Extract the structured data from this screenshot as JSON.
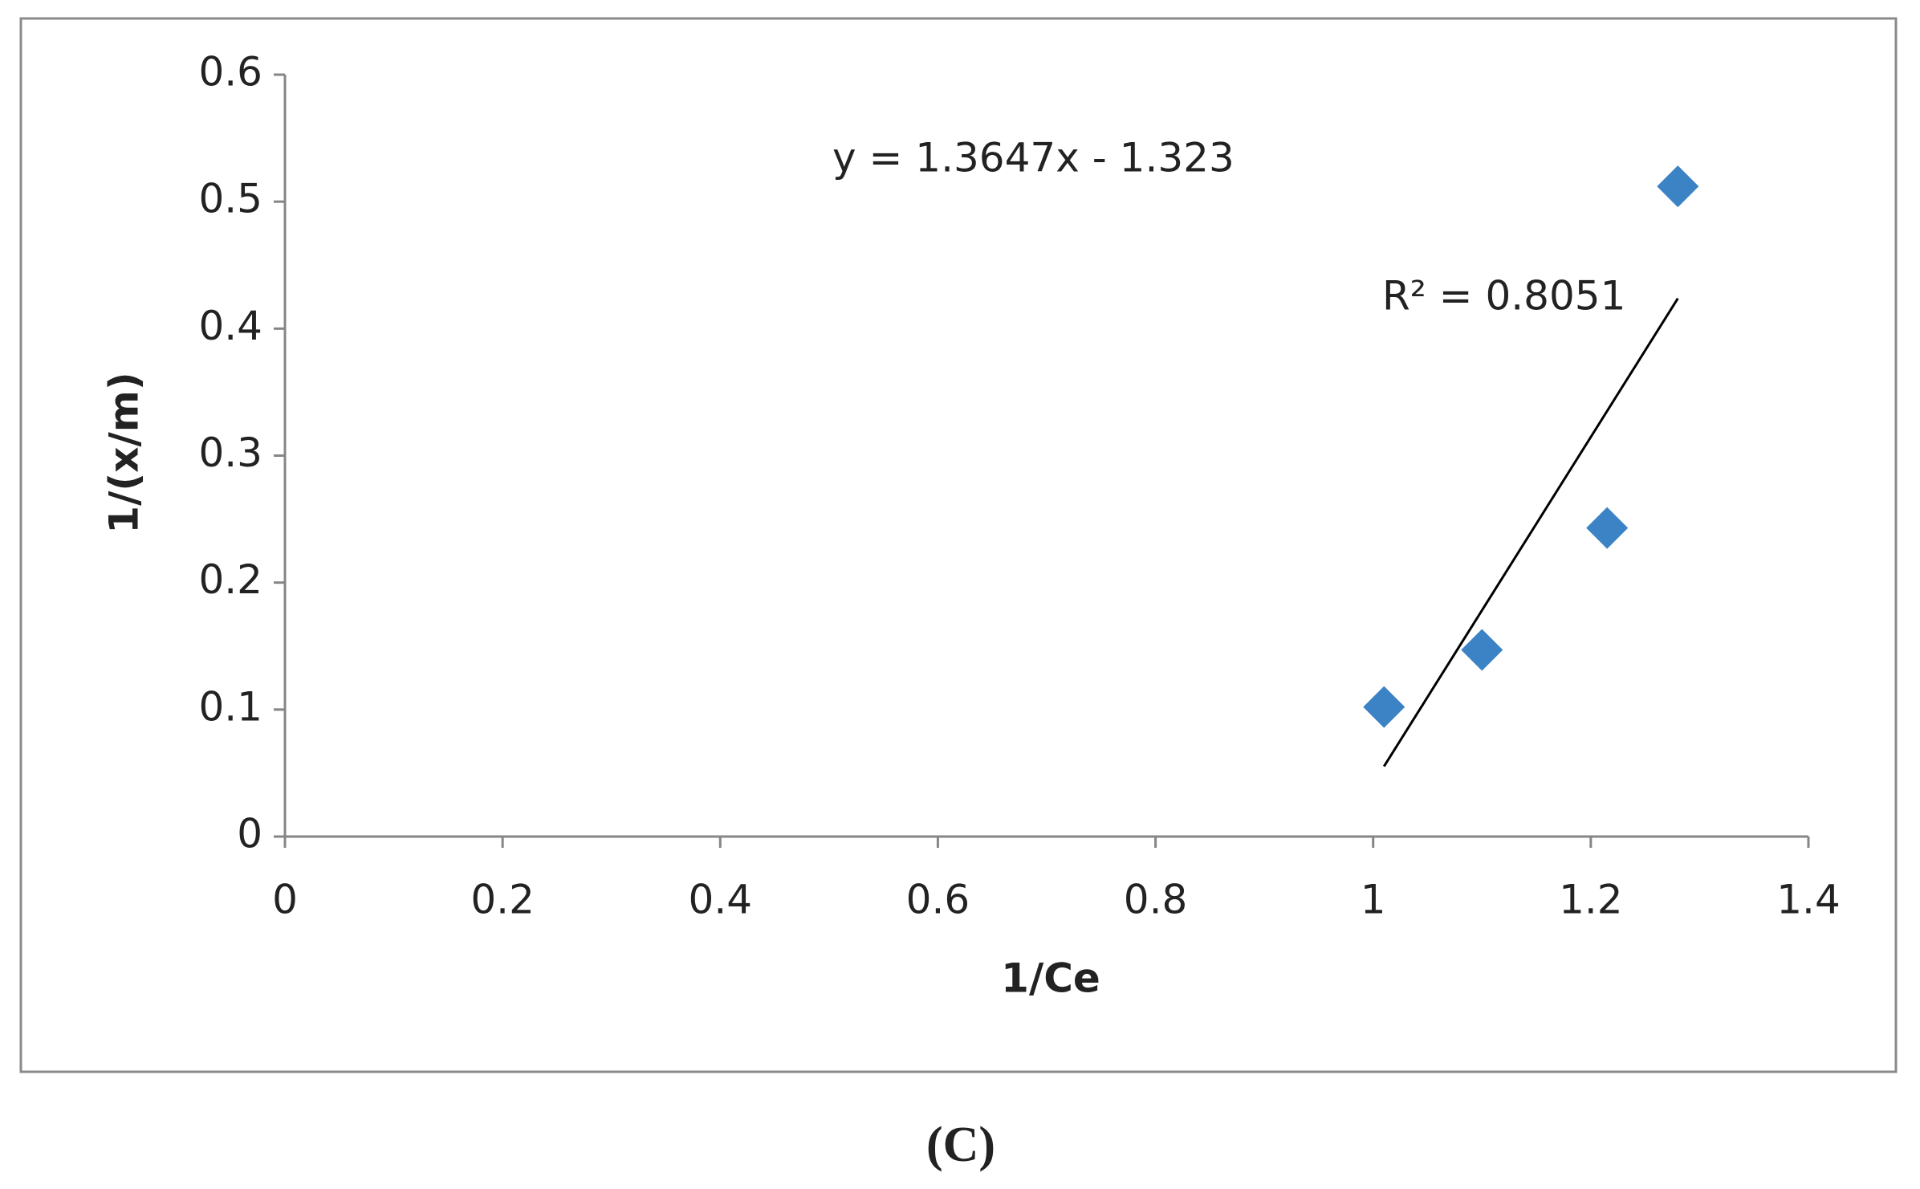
{
  "chart_data": {
    "type": "scatter",
    "x_label": "1/Ce",
    "y_label": "1/(x/m)",
    "x": [
      1.01,
      1.1,
      1.215,
      1.28
    ],
    "series": [
      {
        "color": "#3b83c5",
        "values": [
          0.102,
          0.147,
          0.243,
          0.512
        ]
      }
    ],
    "trendline": {
      "equation": "y = 1.3647x - 1.323",
      "r_squared": "R² = 0.8051",
      "color": "#000000",
      "x": [
        1.01,
        1.28
      ],
      "values": [
        0.0553,
        0.4238
      ]
    },
    "xlim": [
      0,
      1.4
    ],
    "xticks": [
      0,
      0.2,
      0.4,
      0.6,
      0.8,
      1,
      1.2,
      1.4
    ],
    "ylim": [
      0,
      0.6
    ],
    "yticks": [
      0,
      0.1,
      0.2,
      0.3,
      0.4,
      0.5,
      0.6
    ],
    "grid": false
  },
  "caption": "(C)"
}
